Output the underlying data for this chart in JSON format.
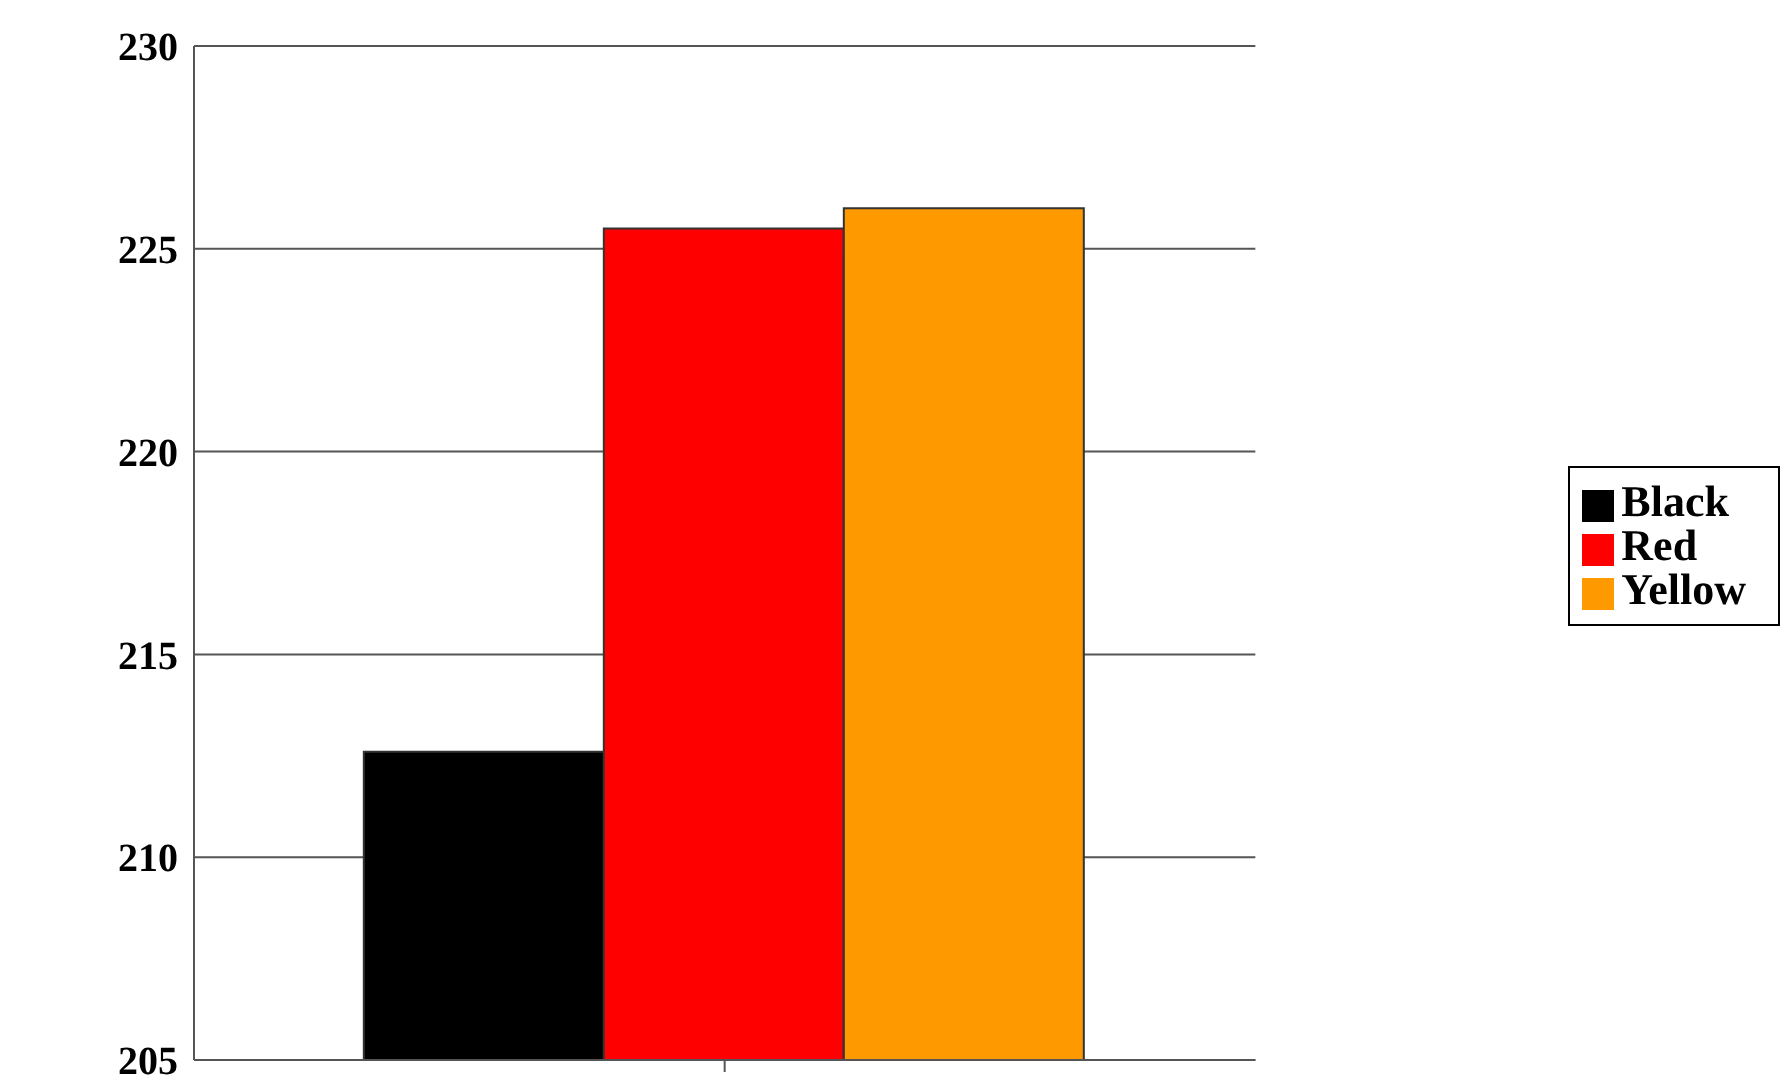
{
  "chart_data": {
    "type": "bar",
    "categories": [
      null
    ],
    "series": [
      {
        "name": "Black",
        "color": "#000000",
        "values": [
          212.6
        ]
      },
      {
        "name": "Red",
        "color": "#ff0000",
        "values": [
          225.5
        ]
      },
      {
        "name": "Yellow",
        "color": "#ff9900",
        "values": [
          226
        ]
      }
    ],
    "ylim": [
      205,
      230
    ],
    "yticks": [
      205,
      210,
      215,
      220,
      225,
      230
    ],
    "grid": "y",
    "legend": "right"
  }
}
